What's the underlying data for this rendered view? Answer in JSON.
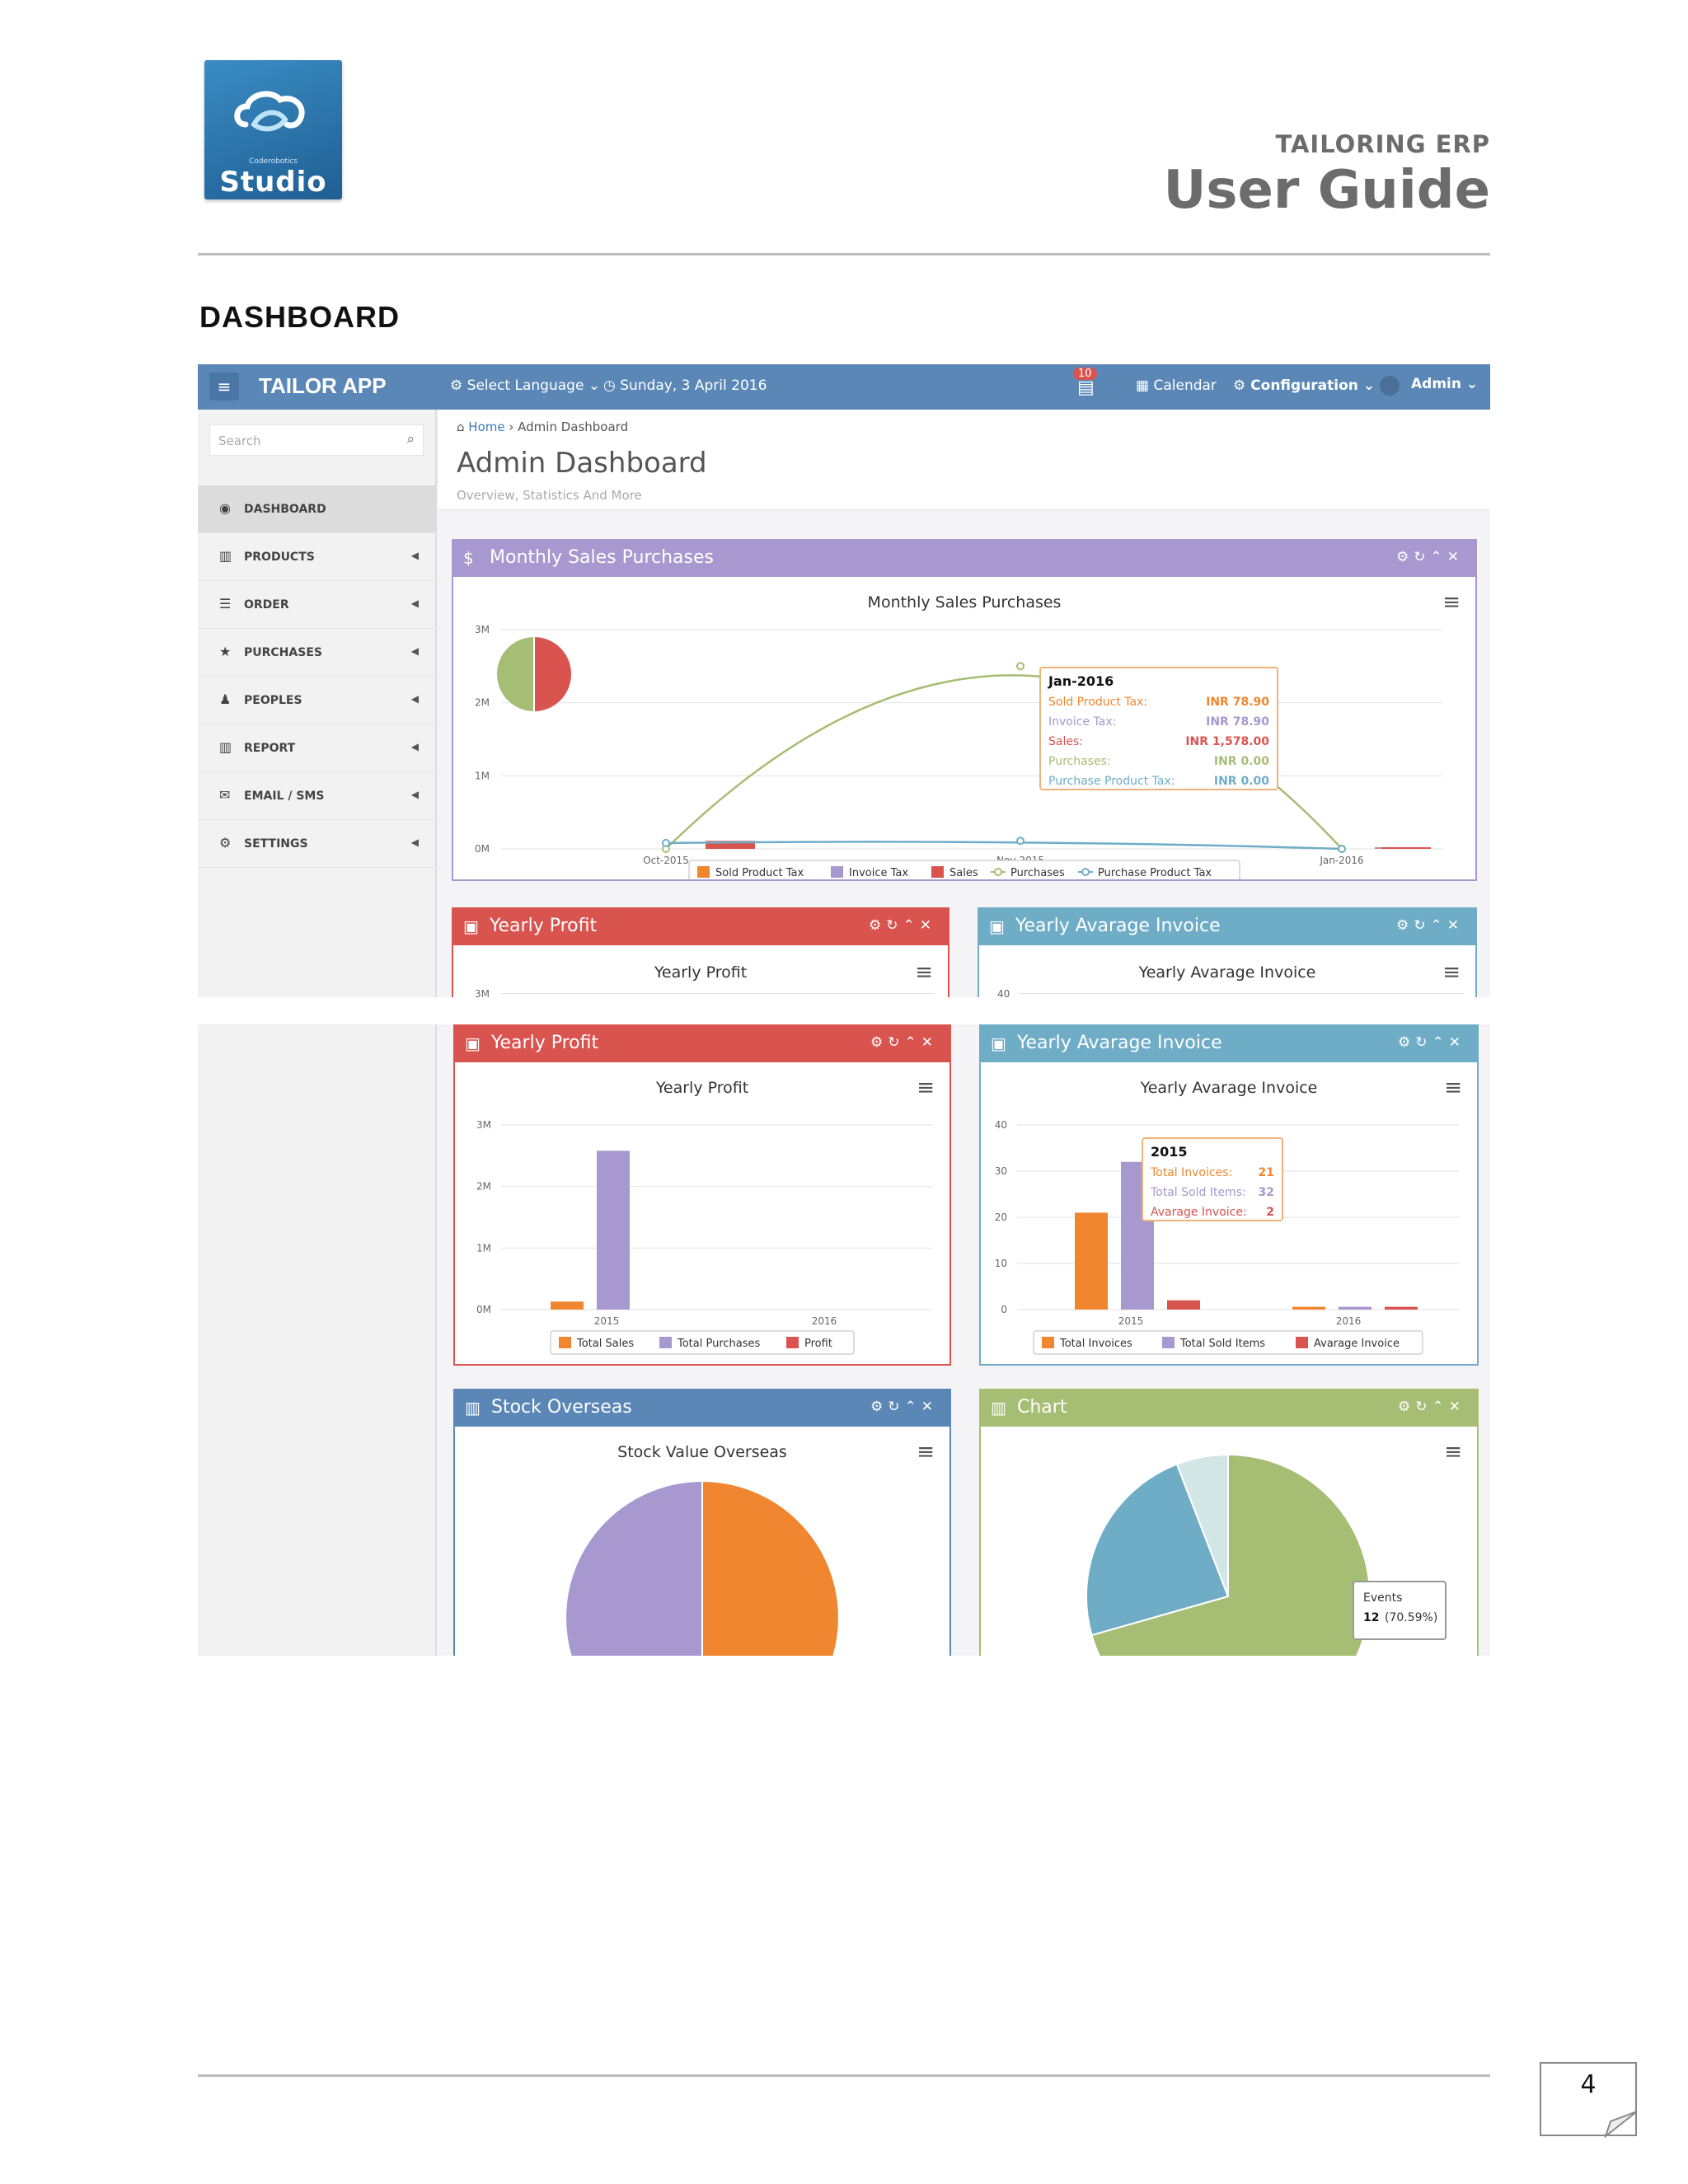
{
  "doc": {
    "logo_sub": "Coderobotics",
    "logo_name": "Studio",
    "erp_title": "TAILORING ERP",
    "guide_title": "User Guide",
    "section": "DASHBOARD",
    "page_number": "4"
  },
  "app": {
    "brand": "TAILOR APP",
    "language": "Select Language",
    "date": "Sunday, 3 April 2016",
    "badge": "10",
    "calendar": "Calendar",
    "configuration": "Configuration",
    "user": "Admin",
    "search_placeholder": "Search",
    "breadcrumb_home": "Home",
    "breadcrumb_current": "Admin Dashboard",
    "page_title": "Admin Dashboard",
    "page_subtitle": "Overview, Statistics And More",
    "sidebar": [
      {
        "label": "DASHBOARD",
        "icon": "dashboard-icon"
      },
      {
        "label": "PRODUCTS",
        "icon": "barcode-icon"
      },
      {
        "label": "ORDER",
        "icon": "list-icon"
      },
      {
        "label": "PURCHASES",
        "icon": "star-icon"
      },
      {
        "label": "PEOPLES",
        "icon": "users-icon"
      },
      {
        "label": "REPORT",
        "icon": "barcode-icon"
      },
      {
        "label": "EMAIL / SMS",
        "icon": "envelope-icon"
      },
      {
        "label": "SETTINGS",
        "icon": "gears-icon"
      }
    ],
    "colors": {
      "nav": "#5b87b7",
      "purple": "#a798cf",
      "red": "#d9534f",
      "blue": "#6fadc7",
      "steel": "#5b87b7",
      "green": "#a6bd74",
      "orange": "#f0862f"
    }
  },
  "panels": {
    "monthly": {
      "header": "Monthly Sales Purchases",
      "chart_title": "Monthly Sales Purchases"
    },
    "profit": {
      "header": "Yearly Profit",
      "chart_title": "Yearly Profit"
    },
    "invoice": {
      "header": "Yearly Avarage Invoice",
      "chart_title": "Yearly Avarage Invoice"
    },
    "stock": {
      "header": "Stock Overseas",
      "chart_title": "Stock Value Overseas"
    },
    "chart": {
      "header": "Chart"
    }
  },
  "tooltips": {
    "monthly": {
      "title": "Jan-2016",
      "rows": [
        {
          "label": "Sold Product Tax:",
          "value": "INR 78.90",
          "color": "#f0862f"
        },
        {
          "label": "Invoice Tax:",
          "value": "INR 78.90",
          "color": "#a798cf"
        },
        {
          "label": "Sales:",
          "value": "INR 1,578.00",
          "color": "#d9534f"
        },
        {
          "label": "Purchases:",
          "value": "INR 0.00",
          "color": "#a6bd74"
        },
        {
          "label": "Purchase Product Tax:",
          "value": "INR 0.00",
          "color": "#6fadc7"
        }
      ]
    },
    "invoice": {
      "title": "2015",
      "rows": [
        {
          "label": "Total Invoices:",
          "value": "21",
          "color": "#f0862f"
        },
        {
          "label": "Total Sold Items:",
          "value": "32",
          "color": "#a798cf"
        },
        {
          "label": "Avarage Invoice:",
          "value": "2",
          "color": "#d9534f"
        }
      ]
    },
    "events": {
      "label": "Events",
      "value": "12",
      "pct": "(70.59%)"
    }
  },
  "chart_data": [
    {
      "type": "line",
      "title": "Monthly Sales Purchases",
      "x": [
        "Oct-2015",
        "Nov-2015",
        "Jan-2016"
      ],
      "yticks": [
        "0M",
        "1M",
        "2M",
        "3M"
      ],
      "ylim": [
        0,
        3000000
      ],
      "series": [
        {
          "name": "Sold Product Tax",
          "type": "bar",
          "values": [
            0,
            0,
            79
          ],
          "color": "#f0862f"
        },
        {
          "name": "Invoice Tax",
          "type": "bar",
          "values": [
            0,
            0,
            79
          ],
          "color": "#a798cf"
        },
        {
          "name": "Sales",
          "type": "bar",
          "values": [
            110000,
            0,
            1578
          ],
          "color": "#d9534f"
        },
        {
          "name": "Purchases",
          "type": "line",
          "values": [
            0,
            2500000,
            0
          ],
          "color": "#a6bd74"
        },
        {
          "name": "Purchase Product Tax",
          "type": "line",
          "values": [
            80000,
            110000,
            0
          ],
          "color": "#6fadc7"
        }
      ],
      "legend": "bottom"
    },
    {
      "type": "bar",
      "title": "Yearly Profit",
      "categories": [
        "2015",
        "2016"
      ],
      "yticks": [
        "0M",
        "1M",
        "2M",
        "3M"
      ],
      "ylim": [
        0,
        3000000
      ],
      "series": [
        {
          "name": "Total Sales",
          "values": [
            130000,
            0
          ],
          "color": "#f0862f"
        },
        {
          "name": "Total Purchases",
          "values": [
            2580000,
            0
          ],
          "color": "#a798cf"
        },
        {
          "name": "Profit",
          "values": [
            0,
            0
          ],
          "color": "#d9534f"
        }
      ],
      "legend": "bottom"
    },
    {
      "type": "bar",
      "title": "Yearly Avarage Invoice",
      "categories": [
        "2015",
        "2016"
      ],
      "yticks": [
        "0",
        "10",
        "20",
        "30",
        "40"
      ],
      "ylim": [
        0,
        40
      ],
      "series": [
        {
          "name": "Total Invoices",
          "values": [
            21,
            0.6
          ],
          "color": "#f0862f"
        },
        {
          "name": "Total Sold Items",
          "values": [
            32,
            0.6
          ],
          "color": "#a798cf"
        },
        {
          "name": "Avarage Invoice",
          "values": [
            2,
            0.6
          ],
          "color": "#d9534f"
        }
      ],
      "legend": "bottom"
    },
    {
      "type": "pie",
      "title": "Stock Value Overseas",
      "slices": [
        {
          "value": 50,
          "color": "#f0862f"
        },
        {
          "value": 50,
          "color": "#a798cf"
        }
      ]
    },
    {
      "type": "pie",
      "slices": [
        {
          "name": "Events",
          "value": 70.59,
          "color": "#a6bd74"
        },
        {
          "value": 23.53,
          "color": "#6fadc7"
        },
        {
          "value": 5.88,
          "color": "#d3e6e6"
        }
      ]
    }
  ]
}
